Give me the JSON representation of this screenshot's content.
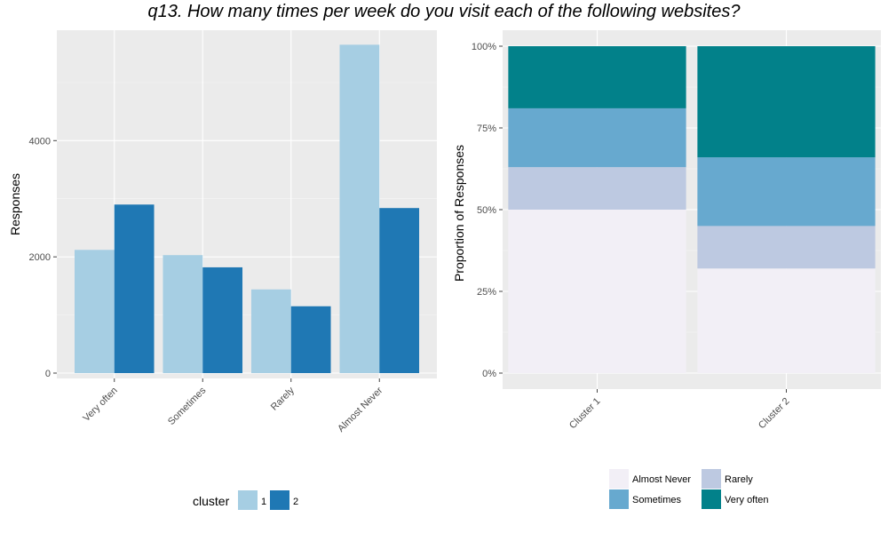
{
  "title": "q13. How many times per week do you visit each of the following websites?",
  "colors": {
    "panel_bg": "#EBEBEB",
    "grid_major": "#FFFFFF",
    "cluster1": "#A6CEE3",
    "cluster2": "#1F78B4",
    "almost_never": "#F2EFF6",
    "rarely": "#BDC9E1",
    "sometimes": "#67A9CF",
    "very_often": "#02818A"
  },
  "chart_data": [
    {
      "type": "bar",
      "xlabel": "",
      "ylabel": "Responses",
      "categories": [
        "Very often",
        "Sometimes",
        "Rarely",
        "Almost Never"
      ],
      "ylim": [
        0,
        5900
      ],
      "yticks": [
        0,
        2000,
        4000
      ],
      "ytick_labels": [
        "0",
        "2000",
        "4000"
      ],
      "series": [
        {
          "name": "1",
          "values": [
            2120,
            2030,
            1440,
            5650
          ]
        },
        {
          "name": "2",
          "values": [
            2900,
            1820,
            1150,
            2840
          ]
        }
      ],
      "legend": {
        "title": "cluster",
        "position": "bottom",
        "items": [
          "1",
          "2"
        ]
      },
      "grid": true
    },
    {
      "type": "bar",
      "stacked": true,
      "normalized": true,
      "xlabel": "",
      "ylabel": "Proportion of Responses",
      "categories": [
        "Cluster 1",
        "Cluster 2"
      ],
      "ylim": [
        0,
        1
      ],
      "yticks": [
        0,
        0.25,
        0.5,
        0.75,
        1.0
      ],
      "ytick_labels": [
        "0%",
        "25%",
        "50%",
        "75%",
        "100%"
      ],
      "series": [
        {
          "name": "Almost Never",
          "values": [
            0.5,
            0.32
          ]
        },
        {
          "name": "Rarely",
          "values": [
            0.13,
            0.13
          ]
        },
        {
          "name": "Sometimes",
          "values": [
            0.18,
            0.21
          ]
        },
        {
          "name": "Very often",
          "values": [
            0.19,
            0.34
          ]
        }
      ],
      "legend": {
        "title": "",
        "position": "bottom",
        "items": [
          "Almost Never",
          "Sometimes",
          "Rarely",
          "Very often"
        ]
      },
      "grid": true
    }
  ]
}
